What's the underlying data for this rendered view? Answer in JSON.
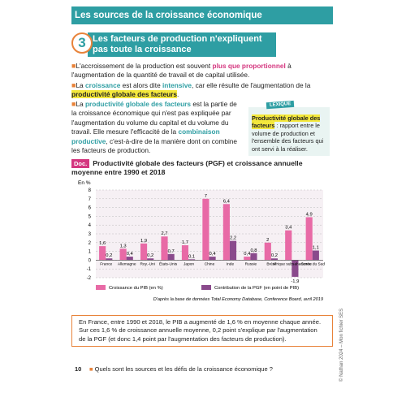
{
  "header": {
    "title": "Les sources de la croissance économique"
  },
  "section": {
    "number": "3",
    "title": "Les facteurs de production n'expliquent pas toute la croissance"
  },
  "paragraphs": [
    [
      "L'accroissement de la production est souvent ",
      "plus que proportionnel",
      " à l'augmentation de la quantité de travail et de capital utilisée."
    ],
    [
      "La ",
      "croissance",
      " est alors dite ",
      "intensive",
      ", car elle résulte de l'augmentation de la ",
      "productivité globale des facteurs",
      "."
    ],
    [
      "La ",
      "productivité globale des facteurs",
      " est la partie de la croissance économique qui n'est pas expliquée par l'augmentation du volume du capital et du volume du travail. Elle mesure l'efficacité de la ",
      "combinaison productive",
      ", c'est-à-dire de la manière dont on combine les facteurs de production."
    ]
  ],
  "lexique": {
    "label": "LEXIQUE",
    "term": "Productivité globale des facteurs",
    "definition": " : rapport entre le volume de production et l'ensemble des facteurs qui ont servi à la réaliser."
  },
  "document": {
    "tag": "Doc.",
    "title": "Productivité globale des facteurs (PGF) et croissance annuelle moyenne entre 1990 et 2018",
    "source": "D'après la base de données Total Economy Database, Conference Board, avril 2019"
  },
  "chart_data": {
    "type": "bar",
    "y_label": "En %",
    "categories": [
      "France",
      "Allemagne",
      "Roy.-Uni",
      "États-Unis",
      "Japon",
      "Chine",
      "Inde",
      "Russie",
      "Brésil",
      "Afrique subsaharienne",
      "Corée du Sud"
    ],
    "series": [
      {
        "name": "Croissance du PIB (en %)",
        "color": "#e86aa6",
        "values": [
          1.6,
          1.3,
          1.9,
          2.7,
          1.7,
          7,
          6.4,
          0.4,
          2,
          3.4,
          4.9
        ],
        "value_labels": [
          "1,6",
          "1,3",
          "1,9",
          "2,7",
          "1,7",
          "7",
          "6,4",
          "0,4",
          "2",
          "3,4",
          "4,9"
        ]
      },
      {
        "name": "Contribution de la PGF (en point de PIB)",
        "color": "#8a4a8c",
        "values": [
          0.2,
          0.4,
          0.2,
          0.7,
          0.1,
          0.4,
          2.2,
          0.8,
          0.2,
          -1.9,
          1.1
        ],
        "value_labels": [
          "0,2",
          "0,4",
          "0,2",
          "0,7",
          "0,1",
          "0,4",
          "2,2",
          "0,8",
          "0,2",
          "-1,9",
          "1,1"
        ]
      }
    ],
    "ylim": [
      -2,
      8
    ],
    "yticks": [
      -2,
      -1,
      0,
      1,
      2,
      3,
      4,
      5,
      6,
      7,
      8
    ],
    "grid": true
  },
  "example": "En France, entre 1990 et 2018, le PIB a augmenté de 1,6 % en moyenne chaque année. Sur ces 1,6 % de croissance annuelle moyenne, 0,2 point s'explique par l'augmentation de la PGF (et donc 1,4 point par l'augmentation des facteurs de production).",
  "footer": {
    "page": "10",
    "question": "Quels sont les sources et les défis de la croissance économique ?",
    "copyright": "© Nathan 2024 – Mon fichier SES"
  }
}
